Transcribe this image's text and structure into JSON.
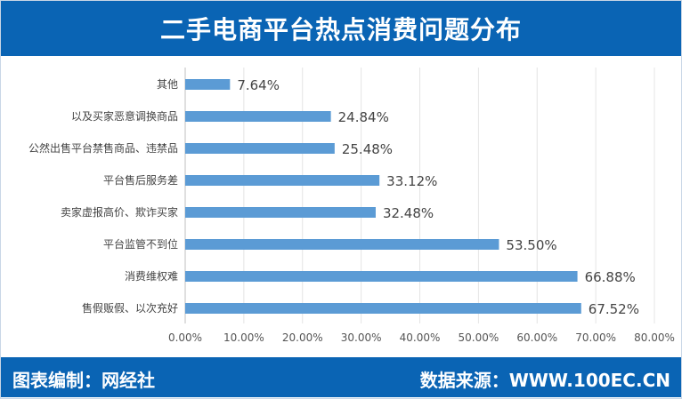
{
  "chart_data": {
    "type": "bar",
    "orientation": "horizontal",
    "title": "二手电商平台热点消费问题分布",
    "categories": [
      "其他",
      "以及买家恶意调换商品",
      "公然出售平台禁售商品、违禁品",
      "平台售后服务差",
      "卖家虚报高价、欺诈买家",
      "平台监管不到位",
      "消费维权难",
      "售假贩假、以次充好"
    ],
    "values": [
      7.64,
      24.84,
      25.48,
      33.12,
      32.48,
      53.5,
      66.88,
      67.52
    ],
    "value_labels": [
      "7.64%",
      "24.84%",
      "25.48%",
      "33.12%",
      "32.48%",
      "53.50%",
      "66.88%",
      "67.52%"
    ],
    "xlim": [
      0,
      80
    ],
    "ticks": [
      "0.00%",
      "10.00%",
      "20.00%",
      "30.00%",
      "40.00%",
      "50.00%",
      "60.00%",
      "70.00%",
      "80.00%"
    ],
    "grid": true,
    "bar_color": "#5b9bd5"
  },
  "footer": {
    "left": "图表编制：网经社",
    "right": "数据来源：WWW.100EC.CN"
  },
  "colors": {
    "brand": "#0a64b4"
  }
}
